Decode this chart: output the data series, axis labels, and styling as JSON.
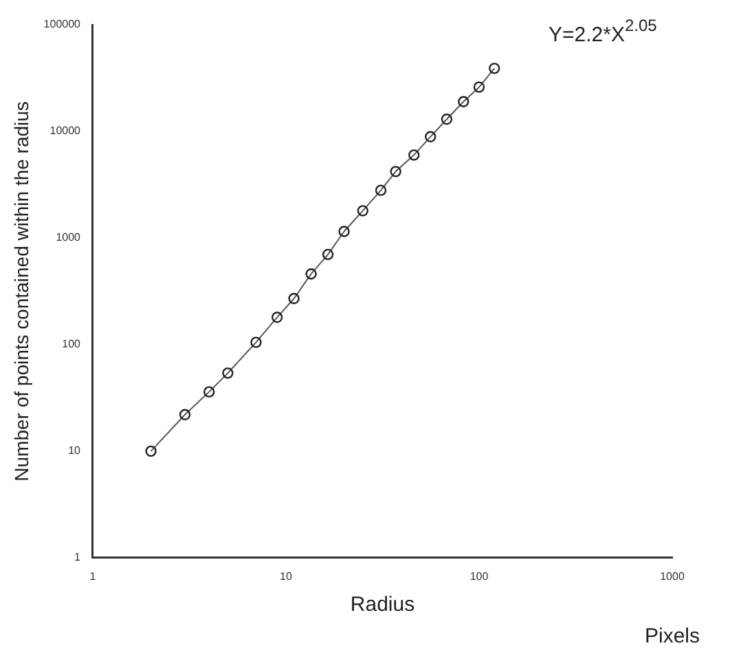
{
  "chart_data": {
    "type": "line",
    "xlabel": "Radius",
    "ylabel": "Number of points contained within the radius",
    "annotations": [
      "Y=2.2*X$^{2.05}$",
      "Pixels"
    ],
    "x": [
      2,
      3,
      4,
      5,
      7,
      9,
      11,
      13.5,
      16.5,
      20,
      25,
      31,
      37,
      46,
      56,
      68,
      83,
      100,
      120
    ],
    "series": [
      {
        "color": "#555555",
        "values": [
          10,
          22,
          36,
          54,
          105,
          180,
          270,
          460,
          700,
          1150,
          1800,
          2800,
          4200,
          6000,
          8900,
          13000,
          19000,
          26000,
          39000
        ]
      }
    ],
    "log": "xy",
    "xlim": [
      1,
      1000
    ],
    "ylim": [
      1,
      100000
    ],
    "xticks": [
      1,
      10,
      100,
      1000
    ],
    "yticks": [
      1,
      10,
      100,
      1000,
      10000,
      100000
    ],
    "marker": "circle",
    "line_style": "solid",
    "grid": false,
    "legend": false
  }
}
